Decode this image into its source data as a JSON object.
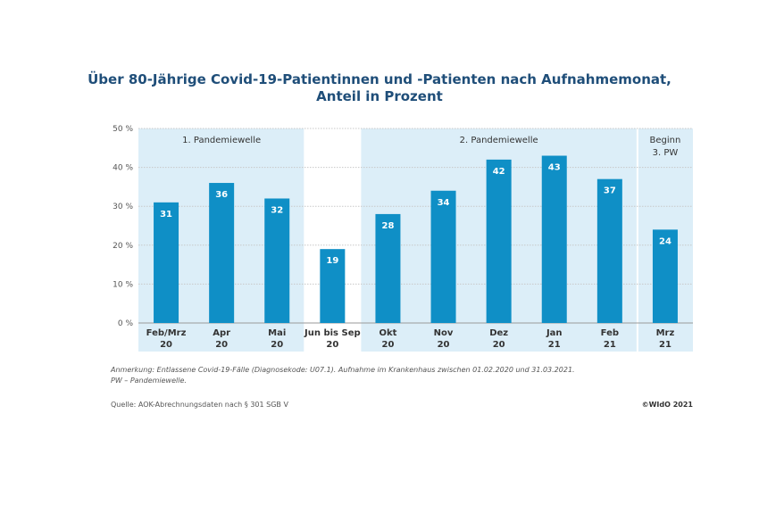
{
  "chart_data": {
    "type": "bar",
    "title_line1": "Über 80-Jährige Covid-19-Patientinnen und -Patienten nach Aufnahmemonat,",
    "title_line2": "Anteil in Prozent",
    "categories": [
      {
        "line1": "Feb/Mrz",
        "line2": "20"
      },
      {
        "line1": "Apr",
        "line2": "20"
      },
      {
        "line1": "Mai",
        "line2": "20"
      },
      {
        "line1": "Jun bis Sep",
        "line2": "20"
      },
      {
        "line1": "Okt",
        "line2": "20"
      },
      {
        "line1": "Nov",
        "line2": "20"
      },
      {
        "line1": "Dez",
        "line2": "20"
      },
      {
        "line1": "Jan",
        "line2": "21"
      },
      {
        "line1": "Feb",
        "line2": "21"
      },
      {
        "line1": "Mrz",
        "line2": "21"
      }
    ],
    "values": [
      31,
      36,
      32,
      19,
      28,
      34,
      42,
      43,
      37,
      24
    ],
    "ylim": [
      0,
      50
    ],
    "yticks": [
      "0 %",
      "10 %",
      "20 %",
      "30 %",
      "40 %",
      "50 %"
    ],
    "grid": true,
    "bar_color": "#0f8fc6",
    "band_color": "#dceef8",
    "annotations": [
      {
        "label_lines": [
          "1. Pandemiewelle"
        ],
        "from_category": 0,
        "to_category": 2
      },
      {
        "label_lines": [
          "2. Pandemiewelle"
        ],
        "from_category": 4,
        "to_category": 8
      },
      {
        "label_lines": [
          "Beginn",
          "3. PW"
        ],
        "from_category": 9,
        "to_category": 9
      }
    ]
  },
  "footnote": {
    "line1": "Anmerkung: Entlassene Covid-19-Fälle (Diagnosekode: U07.1). Aufnahme im Krankenhaus zwischen 01.02.2020 und 31.03.2021.",
    "line2": "PW – Pandemiewelle."
  },
  "source": "Quelle: AOK-Abrechnungsdaten nach § 301 SGB V",
  "copyright": "©WIdO 2021"
}
